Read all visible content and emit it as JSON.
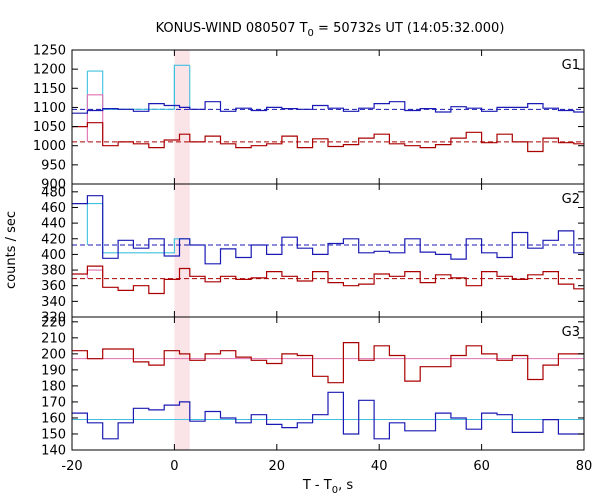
{
  "chart_data": {
    "type": "line",
    "title": {
      "text": "KONUS-WIND 080507 T",
      "sub": "0",
      "rest": " = 50732s UT (14:05:32.000)"
    },
    "xlabel": {
      "text": "T - T",
      "sub": "0",
      "rest": ", s"
    },
    "ylabel": "counts / sec",
    "xlim": [
      -20,
      80
    ],
    "xticks": [
      -20,
      0,
      20,
      40,
      60,
      80
    ],
    "trigger_band": [
      0,
      3
    ],
    "colors": {
      "blue": "#1a1ab4",
      "red": "#aa0000",
      "cyan": "#40c0e0",
      "pink": "#e070b0",
      "band": "#fbe4e8"
    },
    "panels": [
      {
        "label": "G1",
        "ylim": [
          900,
          1250
        ],
        "yticks": [
          900,
          950,
          1000,
          1050,
          1100,
          1150,
          1200,
          1250
        ],
        "bg_blue": 1095,
        "bg_red": 1010,
        "bg_style": "dashed",
        "blue_edges": [
          -20,
          -17,
          -14,
          -11,
          -8,
          -5,
          -2,
          1,
          3,
          6,
          9,
          12,
          15,
          18,
          21,
          24,
          27,
          30,
          33,
          36,
          39,
          42,
          45,
          48,
          51,
          54,
          57,
          60,
          63,
          66,
          69,
          72,
          75,
          78,
          80
        ],
        "blue": [
          1085,
          1092,
          1097,
          1095,
          1090,
          1110,
          1105,
          1100,
          1095,
          1115,
          1090,
          1098,
          1092,
          1100,
          1097,
          1095,
          1105,
          1098,
          1090,
          1098,
          1110,
          1115,
          1092,
          1097,
          1088,
          1102,
          1098,
          1090,
          1100,
          1100,
          1110,
          1098,
          1092,
          1088
        ],
        "red_edges": [
          -20,
          -17,
          -14,
          -11,
          -8,
          -5,
          -2,
          1,
          3,
          6,
          9,
          12,
          15,
          18,
          21,
          24,
          27,
          30,
          33,
          36,
          39,
          42,
          45,
          48,
          51,
          54,
          57,
          60,
          63,
          66,
          69,
          72,
          75,
          78,
          80
        ],
        "red": [
          1050,
          1060,
          1000,
          1010,
          1005,
          995,
          1015,
          1030,
          1010,
          1025,
          1005,
          995,
          1000,
          1005,
          1025,
          995,
          1018,
          998,
          1003,
          1020,
          1030,
          1005,
          1000,
          995,
          1003,
          1020,
          1035,
          1008,
          1030,
          1010,
          985,
          1020,
          1008,
          1005
        ],
        "cyan_edges": [
          -17,
          -14,
          0,
          3
        ],
        "cyan": [
          1195,
          1095,
          1210
        ],
        "pink_edges": [
          -17,
          -14
        ],
        "pink": [
          1133
        ]
      },
      {
        "label": "G2",
        "ylim": [
          320,
          490
        ],
        "yticks": [
          320,
          340,
          360,
          380,
          400,
          420,
          440,
          460,
          480
        ],
        "bg_blue": 412,
        "bg_red": 369,
        "bg_style": "dashed",
        "blue_edges": [
          -20,
          -17,
          -14,
          -11,
          -8,
          -5,
          -2,
          1,
          3,
          6,
          9,
          12,
          15,
          18,
          21,
          24,
          27,
          30,
          33,
          36,
          39,
          42,
          45,
          48,
          51,
          54,
          57,
          60,
          63,
          66,
          69,
          72,
          75,
          78,
          80
        ],
        "blue": [
          465,
          475,
          395,
          418,
          408,
          420,
          398,
          420,
          412,
          388,
          407,
          396,
          412,
          400,
          422,
          408,
          400,
          414,
          420,
          402,
          404,
          402,
          420,
          403,
          400,
          394,
          420,
          402,
          396,
          428,
          408,
          418,
          430,
          402
        ],
        "red_edges": [
          -20,
          -17,
          -14,
          -11,
          -8,
          -5,
          -2,
          1,
          3,
          6,
          9,
          12,
          15,
          18,
          21,
          24,
          27,
          30,
          33,
          36,
          39,
          42,
          45,
          48,
          51,
          54,
          57,
          60,
          63,
          66,
          69,
          72,
          75,
          78,
          80
        ],
        "red": [
          375,
          385,
          358,
          354,
          360,
          350,
          368,
          382,
          372,
          365,
          372,
          368,
          370,
          378,
          372,
          366,
          378,
          364,
          360,
          362,
          375,
          372,
          378,
          364,
          374,
          370,
          360,
          378,
          372,
          368,
          374,
          378,
          362,
          356
        ],
        "cyan_edges": [
          -17,
          -14,
          0,
          3
        ],
        "cyan": [
          465,
          402,
          420
        ],
        "pink_edges": [
          -17,
          -14
        ],
        "pink": [
          380
        ]
      },
      {
        "label": "G3",
        "ylim": [
          140,
          223
        ],
        "yticks": [
          140,
          150,
          160,
          170,
          180,
          190,
          200,
          210,
          220
        ],
        "bg_blue": 159,
        "bg_red": 197,
        "bg_style": "solid",
        "blue_edges": [
          -20,
          -17,
          -14,
          -11,
          -8,
          -5,
          -2,
          1,
          3,
          6,
          9,
          12,
          15,
          18,
          21,
          24,
          27,
          30,
          33,
          36,
          39,
          42,
          45,
          48,
          51,
          54,
          57,
          60,
          63,
          66,
          69,
          72,
          75,
          78,
          80
        ],
        "blue": [
          163,
          157,
          147,
          157,
          166,
          165,
          168,
          170,
          158,
          164,
          160,
          157,
          162,
          156,
          154,
          157,
          162,
          176,
          150,
          171,
          147,
          157,
          152,
          152,
          163,
          160,
          153,
          163,
          162,
          151,
          151,
          159,
          150,
          150
        ],
        "red_edges": [
          -20,
          -17,
          -14,
          -11,
          -8,
          -5,
          -2,
          1,
          3,
          6,
          9,
          12,
          15,
          18,
          21,
          24,
          27,
          30,
          33,
          36,
          39,
          42,
          45,
          48,
          51,
          54,
          57,
          60,
          63,
          66,
          69,
          72,
          75,
          78,
          80
        ],
        "red": [
          202,
          197,
          203,
          203,
          195,
          193,
          202,
          200,
          196,
          200,
          202,
          198,
          196,
          194,
          200,
          199,
          186,
          182,
          207,
          196,
          205,
          199,
          183,
          192,
          192,
          199,
          205,
          200,
          196,
          199,
          184,
          193,
          200,
          200
        ],
        "cyan_edges": [],
        "cyan": [],
        "pink_edges": [],
        "pink": []
      }
    ]
  }
}
